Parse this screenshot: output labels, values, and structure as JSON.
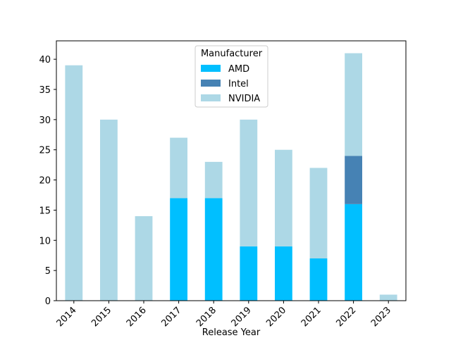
{
  "chart_data": {
    "type": "stacked_bar",
    "xlabel": "Release Year",
    "categories": [
      "2014",
      "2015",
      "2016",
      "2017",
      "2018",
      "2019",
      "2020",
      "2021",
      "2022",
      "2023"
    ],
    "series": [
      {
        "name": "AMD",
        "color": "#00bfff",
        "values": [
          0,
          0,
          0,
          17,
          17,
          9,
          9,
          7,
          16,
          0
        ]
      },
      {
        "name": "Intel",
        "color": "#4682b4",
        "values": [
          0,
          0,
          0,
          0,
          0,
          0,
          0,
          0,
          8,
          0
        ]
      },
      {
        "name": "NVIDIA",
        "color": "#add8e6",
        "values": [
          39,
          30,
          14,
          10,
          6,
          21,
          16,
          15,
          17,
          1
        ]
      }
    ],
    "ylim": [
      0,
      43.05
    ],
    "yticks": [
      0,
      5,
      10,
      15,
      20,
      25,
      30,
      35,
      40
    ],
    "legend": {
      "title": "Manufacturer",
      "position": "upper center"
    }
  }
}
